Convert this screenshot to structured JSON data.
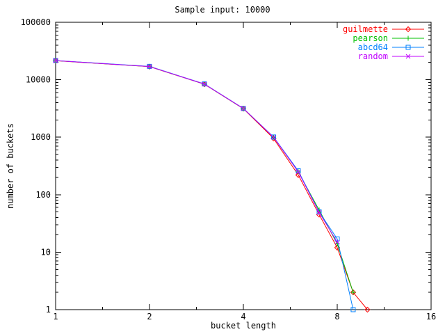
{
  "chart_data": {
    "type": "line",
    "title": "Sample input: 10000",
    "xlabel": "bucket length",
    "ylabel": "number of buckets",
    "x_scale": "log2",
    "y_scale": "log10",
    "xlim": [
      1,
      16
    ],
    "ylim": [
      1,
      100000
    ],
    "x_ticks": [
      1,
      2,
      4,
      8,
      16
    ],
    "y_ticks": [
      1,
      10,
      100,
      1000,
      10000,
      100000
    ],
    "grid": false,
    "legend_position": "top-right-inside",
    "background_color": "#ffffff",
    "axis_color": "#000000",
    "series": [
      {
        "name": "guilmette",
        "color": "#ff0000",
        "marker": "diamond",
        "x": [
          1,
          2,
          3,
          4,
          5,
          6,
          7,
          8,
          9,
          10
        ],
        "y": [
          21400,
          16900,
          8350,
          3140,
          950,
          220,
          45,
          12,
          2,
          1
        ]
      },
      {
        "name": "pearson",
        "color": "#00c000",
        "marker": "plus",
        "x": [
          1,
          2,
          3,
          4,
          5,
          6,
          7,
          8,
          9
        ],
        "y": [
          21500,
          17000,
          8400,
          3150,
          1000,
          250,
          54,
          14,
          2
        ]
      },
      {
        "name": "abcd64",
        "color": "#0080ff",
        "marker": "square",
        "x": [
          1,
          2,
          3,
          4,
          5,
          6,
          7,
          8,
          9
        ],
        "y": [
          21600,
          17100,
          8450,
          3170,
          1010,
          260,
          50,
          17,
          1
        ]
      },
      {
        "name": "random",
        "color": "#c000ff",
        "marker": "cross",
        "x": [
          1,
          2,
          3,
          4,
          5,
          6,
          7,
          8
        ],
        "y": [
          21500,
          17000,
          8400,
          3160,
          1000,
          250,
          49,
          15
        ]
      }
    ]
  }
}
